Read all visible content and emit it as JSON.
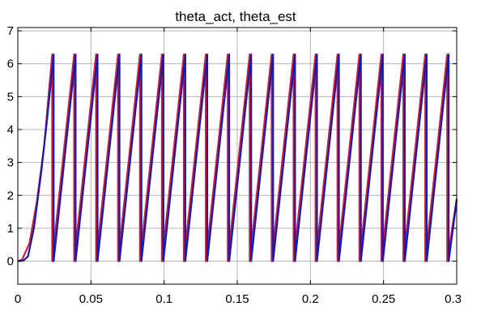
{
  "chart_data": {
    "type": "line",
    "title": "theta_act, theta_est",
    "xlabel": "",
    "ylabel": "",
    "xlim": [
      0,
      0.3
    ],
    "ylim": [
      -0.7,
      7.1
    ],
    "x_ticks": [
      0,
      0.05,
      0.1,
      0.15,
      0.2,
      0.25,
      0.3
    ],
    "x_tick_labels": [
      "0",
      "0.05",
      "0.1",
      "0.15",
      "0.2",
      "0.25",
      "0.3"
    ],
    "y_ticks": [
      0,
      1,
      2,
      3,
      4,
      5,
      6,
      7
    ],
    "y_tick_labels": [
      "0",
      "1",
      "2",
      "3",
      "4",
      "5",
      "6",
      "7"
    ],
    "grid": true,
    "legend": "none",
    "wrap_value": 6.283,
    "series": [
      {
        "color": "#cc1f3c",
        "wrap_times": [
          0.0235,
          0.0385,
          0.0535,
          0.0685,
          0.0835,
          0.0985,
          0.1135,
          0.1285,
          0.1435,
          0.1585,
          0.1735,
          0.1885,
          0.2035,
          0.2185,
          0.2335,
          0.2485,
          0.2635,
          0.2785,
          0.2935
        ],
        "start": [
          [
            0,
            0
          ],
          [
            0.003,
            0.05
          ],
          [
            0.008,
            0.55
          ],
          [
            0.013,
            1.8
          ],
          [
            0.018,
            3.5
          ],
          [
            0.0235,
            6.283
          ]
        ],
        "end_value": 1.9
      },
      {
        "color": "#1a1aa8",
        "wrap_times": [
          0.0245,
          0.0395,
          0.0545,
          0.0695,
          0.0845,
          0.0995,
          0.1145,
          0.1295,
          0.1445,
          0.1595,
          0.1745,
          0.1895,
          0.2045,
          0.2195,
          0.2345,
          0.2495,
          0.2645,
          0.2795,
          0.2945
        ],
        "start": [
          [
            0,
            0
          ],
          [
            0.004,
            0.02
          ],
          [
            0.007,
            0.15
          ],
          [
            0.011,
            1.0
          ],
          [
            0.016,
            2.7
          ],
          [
            0.02,
            4.3
          ],
          [
            0.0245,
            6.283
          ]
        ],
        "end_value": 1.85
      }
    ]
  }
}
